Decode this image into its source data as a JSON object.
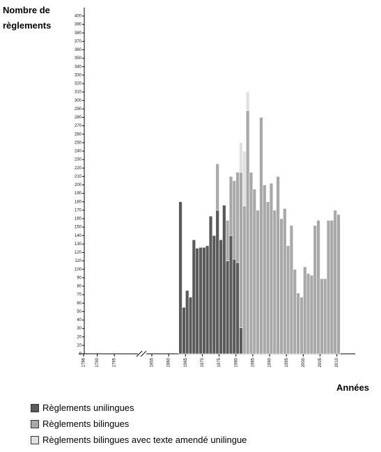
{
  "chart_data": {
    "type": "stacked-bar",
    "ylabel": "Nombre de règlements",
    "xlabel": "Années",
    "x": [
      1963,
      1964,
      1965,
      1966,
      1967,
      1968,
      1969,
      1970,
      1971,
      1972,
      1973,
      1974,
      1975,
      1976,
      1977,
      1978,
      1979,
      1980,
      1981,
      1982,
      1983,
      1984,
      1985,
      1986,
      1987,
      1988,
      1989,
      1990,
      1991,
      1992,
      1993,
      1994,
      1995,
      1996,
      1997,
      1998,
      1999,
      2000,
      2001,
      2002,
      2003,
      2004,
      2005,
      2006,
      2007,
      2008,
      2009,
      2010
    ],
    "series": [
      {
        "name": "Règlements unilingues",
        "color": "#5a5a5a",
        "values": [
          180,
          55,
          75,
          67,
          135,
          125,
          126,
          126,
          128,
          163,
          140,
          170,
          135,
          176,
          110,
          140,
          112,
          108,
          31,
          null,
          null,
          null,
          null,
          null,
          null,
          null,
          null,
          null,
          null,
          null,
          null,
          null,
          null,
          null,
          null,
          null,
          null,
          null,
          null,
          null,
          null,
          null,
          null,
          null,
          null,
          null,
          null,
          null
        ]
      },
      {
        "name": "Règlements bilingues",
        "color": "#a8a8a8",
        "values": [
          null,
          null,
          null,
          null,
          null,
          null,
          null,
          null,
          null,
          null,
          null,
          55,
          null,
          null,
          48,
          70,
          93,
          107,
          184,
          175,
          288,
          215,
          195,
          170,
          280,
          200,
          180,
          202,
          170,
          210,
          160,
          172,
          128,
          152,
          100,
          72,
          67,
          103,
          95,
          93,
          152,
          158,
          89,
          89,
          158,
          158,
          170,
          165
        ]
      },
      {
        "name": "Règlements bilingues avec texte amendé unilingue",
        "color": "#e0e0e0",
        "values": [
          null,
          null,
          null,
          null,
          null,
          null,
          null,
          null,
          null,
          null,
          null,
          null,
          null,
          null,
          null,
          null,
          null,
          null,
          35,
          65,
          22,
          null,
          null,
          null,
          null,
          null,
          null,
          null,
          null,
          null,
          null,
          null,
          null,
          null,
          null,
          null,
          null,
          null,
          null,
          null,
          null,
          null,
          null,
          null,
          null,
          null,
          null,
          null
        ]
      }
    ],
    "ylim": [
      0,
      410
    ],
    "yticks": [
      0,
      10,
      20,
      30,
      40,
      50,
      60,
      70,
      80,
      90,
      100,
      110,
      120,
      130,
      140,
      150,
      160,
      170,
      180,
      190,
      200,
      210,
      220,
      230,
      240,
      250,
      260,
      270,
      280,
      290,
      300,
      310,
      320,
      330,
      340,
      350,
      360,
      370,
      380,
      390,
      400
    ],
    "xlim": [
      1785,
      2015
    ],
    "xbreak": [
      1800,
      1953
    ],
    "xticks": [
      1786,
      1790,
      1795,
      1955,
      1960,
      1965,
      1970,
      1975,
      1980,
      1985,
      1990,
      1995,
      2000,
      2005,
      2010
    ],
    "legend": "bottom-left"
  }
}
